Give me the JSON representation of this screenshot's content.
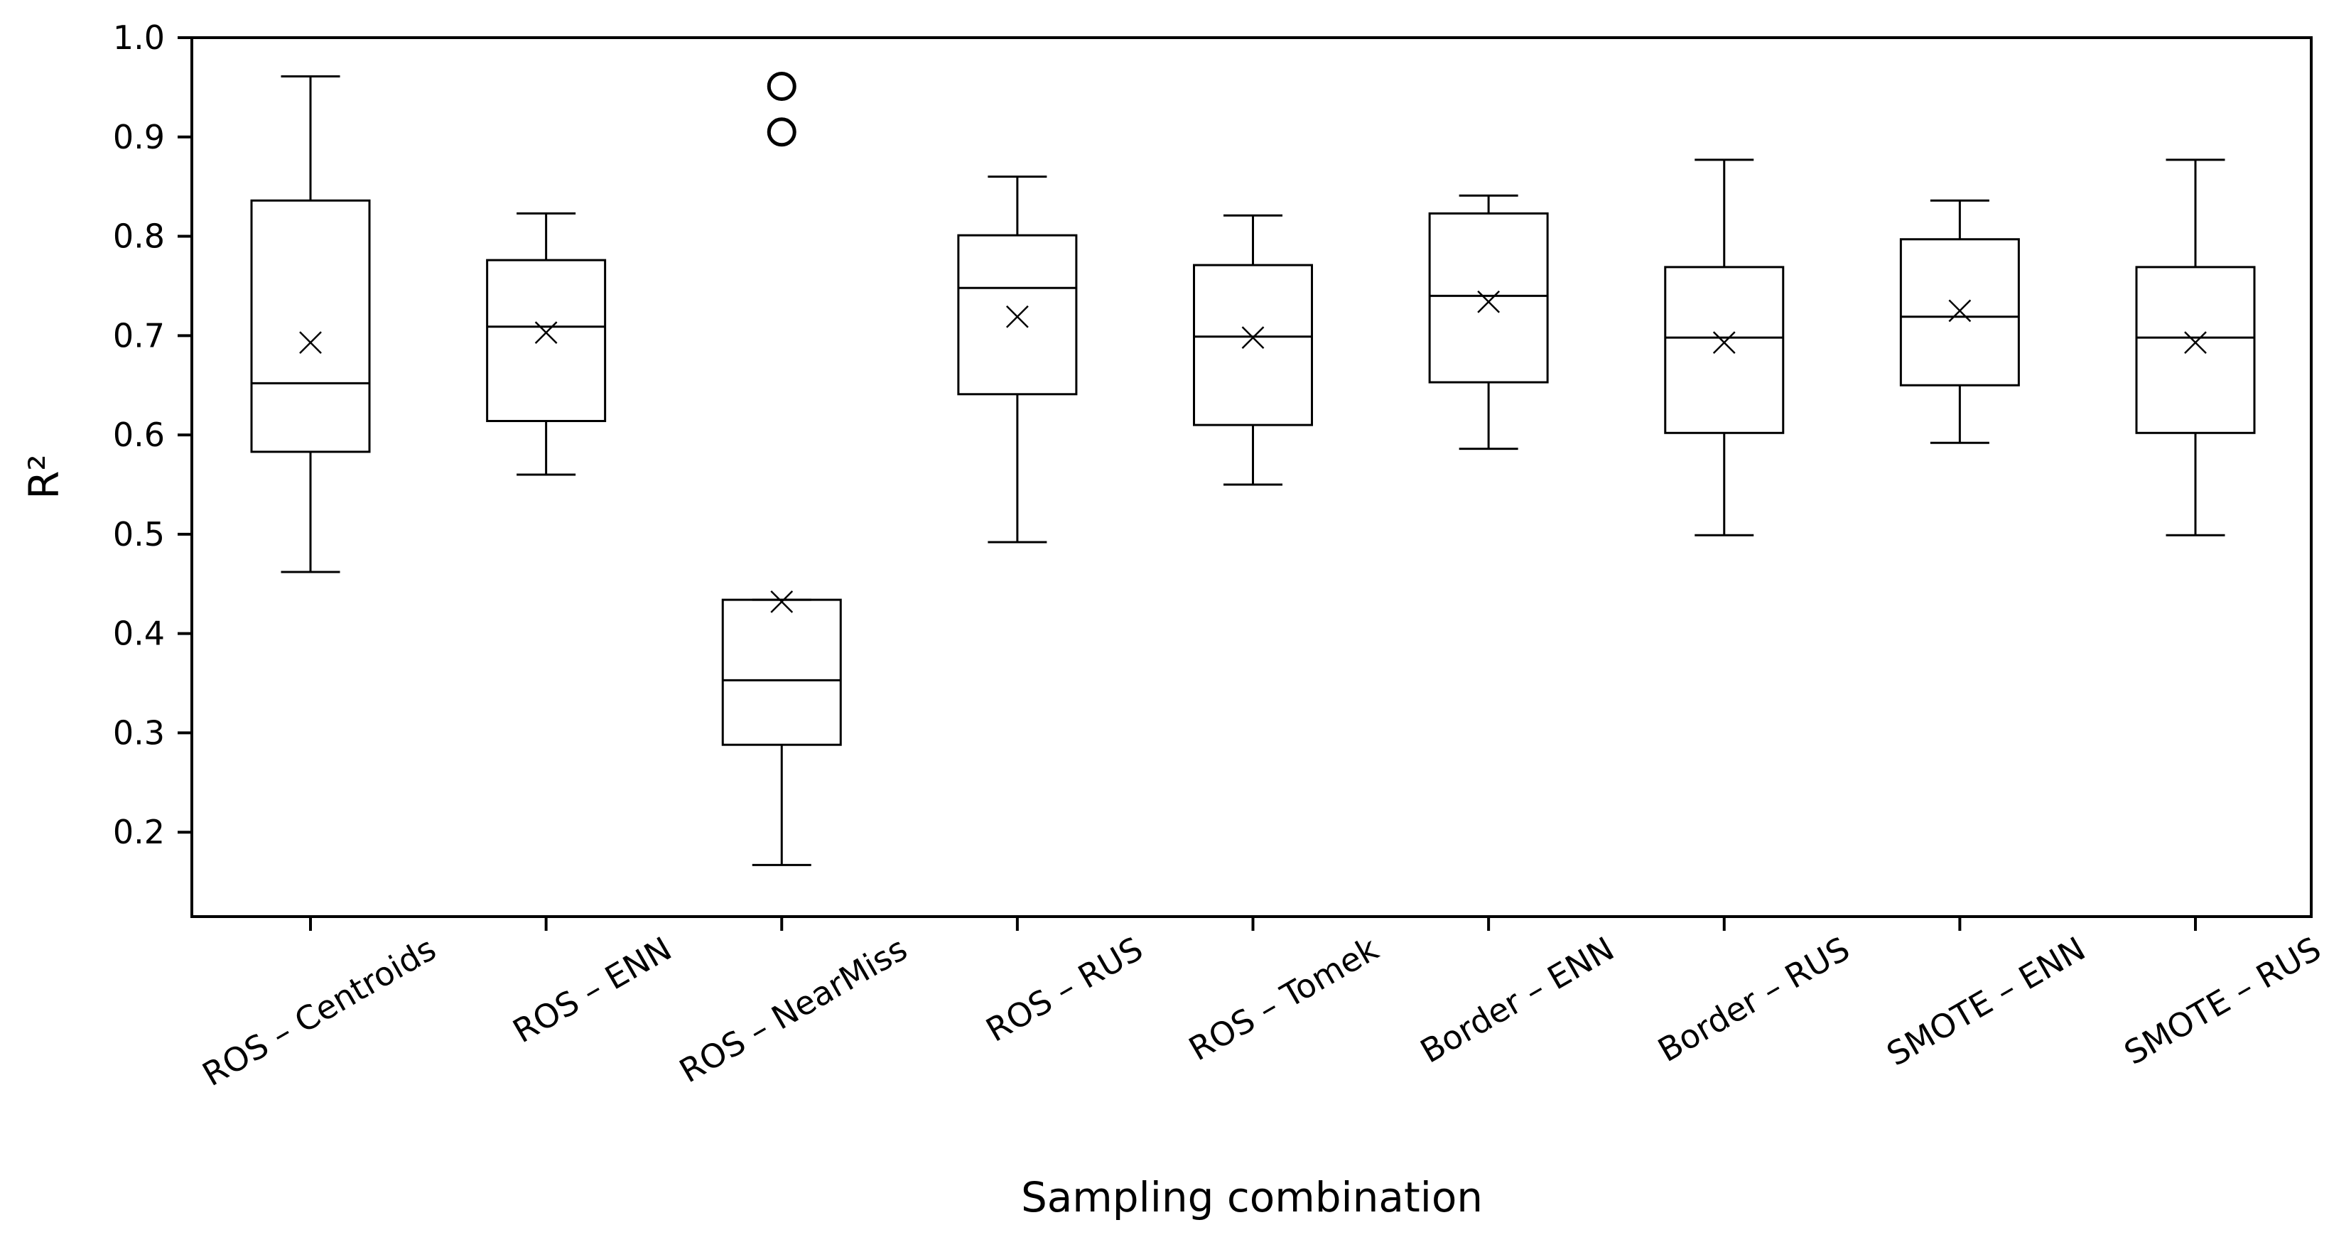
{
  "chart_data": {
    "type": "box",
    "title": "",
    "xlabel": "Sampling combination",
    "ylabel": "R²",
    "ylim": [
      0.115,
      1.0
    ],
    "yticks": [
      "0.2",
      "0.3",
      "0.4",
      "0.5",
      "0.6",
      "0.7",
      "0.8",
      "0.9",
      "1.0"
    ],
    "grid": false,
    "categories": [
      "ROS – Centroids",
      "ROS – ENN",
      "ROS – NearMiss",
      "ROS – RUS",
      "ROS – Tomek",
      "Border – ENN",
      "Border – RUS",
      "SMOTE – ENN",
      "SMOTE – RUS"
    ],
    "boxes": [
      {
        "whisker_low": 0.462,
        "q1": 0.583,
        "median": 0.652,
        "q3": 0.836,
        "whisker_high": 0.961,
        "mean": 0.693,
        "outliers": []
      },
      {
        "whisker_low": 0.56,
        "q1": 0.614,
        "median": 0.709,
        "q3": 0.776,
        "whisker_high": 0.823,
        "mean": 0.703,
        "outliers": []
      },
      {
        "whisker_low": 0.167,
        "q1": 0.288,
        "median": 0.353,
        "q3": 0.434,
        "whisker_high": 0.434,
        "mean": 0.432,
        "outliers": [
          0.905,
          0.951
        ]
      },
      {
        "whisker_low": 0.492,
        "q1": 0.641,
        "median": 0.748,
        "q3": 0.801,
        "whisker_high": 0.86,
        "mean": 0.719,
        "outliers": []
      },
      {
        "whisker_low": 0.55,
        "q1": 0.61,
        "median": 0.699,
        "q3": 0.771,
        "whisker_high": 0.821,
        "mean": 0.698,
        "outliers": []
      },
      {
        "whisker_low": 0.586,
        "q1": 0.653,
        "median": 0.74,
        "q3": 0.823,
        "whisker_high": 0.841,
        "mean": 0.734,
        "outliers": []
      },
      {
        "whisker_low": 0.499,
        "q1": 0.602,
        "median": 0.698,
        "q3": 0.769,
        "whisker_high": 0.877,
        "mean": 0.693,
        "outliers": []
      },
      {
        "whisker_low": 0.592,
        "q1": 0.65,
        "median": 0.719,
        "q3": 0.797,
        "whisker_high": 0.836,
        "mean": 0.725,
        "outliers": []
      },
      {
        "whisker_low": 0.499,
        "q1": 0.602,
        "median": 0.698,
        "q3": 0.769,
        "whisker_high": 0.877,
        "mean": 0.693,
        "outliers": []
      }
    ]
  }
}
